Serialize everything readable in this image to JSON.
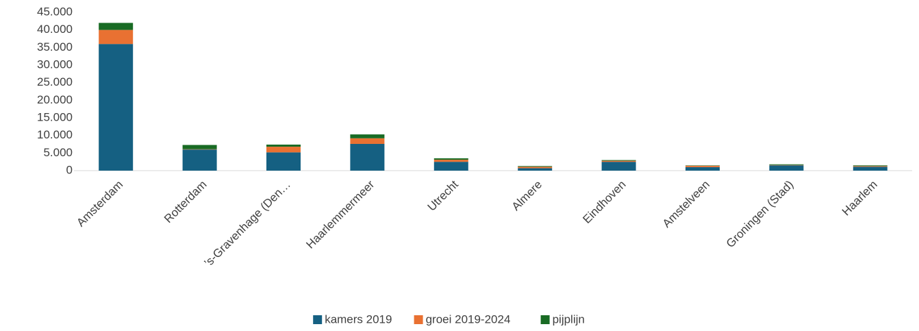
{
  "chart_data": {
    "type": "stacked_bar",
    "categories": [
      "Amsterdam",
      "Rotterdam",
      "’s-Gravenhage (Den…",
      "Haarlemmermeer",
      "Utrecht",
      "Almere",
      "Eindhoven",
      "Amstelveen",
      "Groningen (Stad)",
      "Haarlem"
    ],
    "series": [
      {
        "name": "kamers 2019",
        "color": "#156082",
        "values": [
          36000,
          6000,
          5200,
          7600,
          2500,
          700,
          2500,
          1000,
          1500,
          1100
        ]
      },
      {
        "name": "groei 2019-2024",
        "color": "#e97132",
        "values": [
          4000,
          100,
          1600,
          1600,
          600,
          400,
          300,
          400,
          100,
          200
        ]
      },
      {
        "name": "pijplijn",
        "color": "#196b24",
        "values": [
          2000,
          1200,
          600,
          1100,
          400,
          200,
          200,
          100,
          200,
          200
        ]
      }
    ],
    "ylim": [
      0,
      45000
    ],
    "yticks": [
      0,
      {
        "value": 5000,
        "label": "5.000"
      },
      {
        "value": 10000,
        "label": "10.000"
      },
      {
        "value": 15000,
        "label": "15.000"
      },
      {
        "value": 20000,
        "label": "20.000"
      },
      {
        "value": 25000,
        "label": "25.000"
      },
      {
        "value": 30000,
        "label": "30.000"
      },
      {
        "value": 35000,
        "label": "35.000"
      },
      {
        "value": 40000,
        "label": "40.000"
      },
      {
        "value": 45000,
        "label": "45.000"
      }
    ],
    "legend": "bottom"
  }
}
